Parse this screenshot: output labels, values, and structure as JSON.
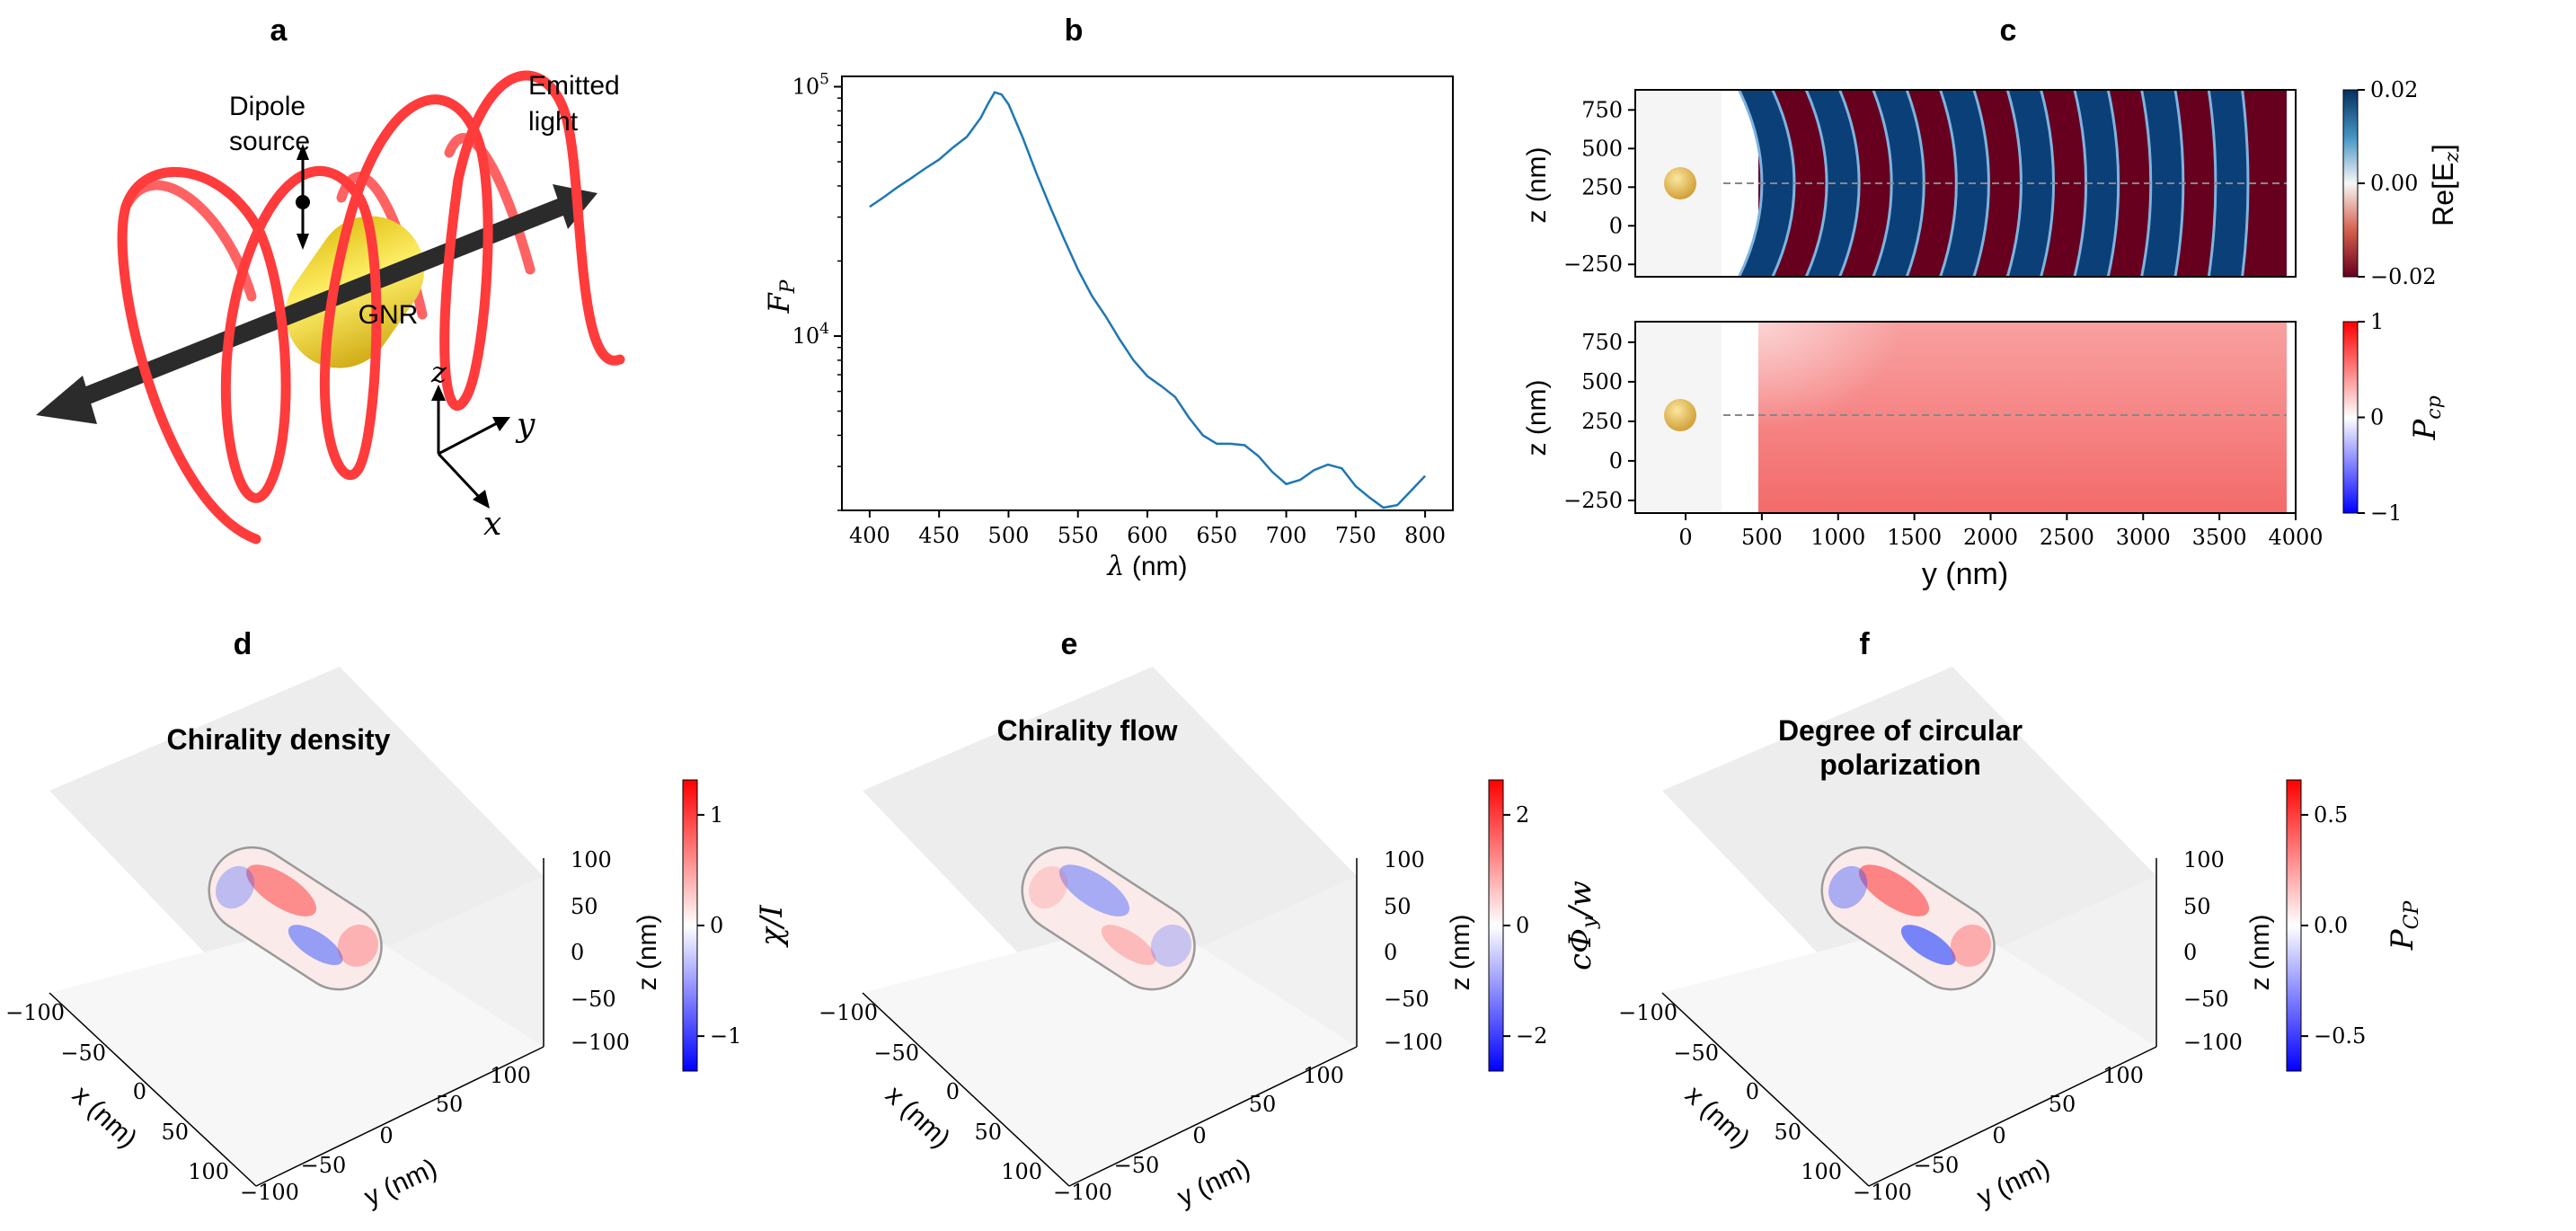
{
  "panel_letters": {
    "a": "a",
    "b": "b",
    "c": "c",
    "d": "d",
    "e": "e",
    "f": "f"
  },
  "panel_a": {
    "labels": {
      "dipole": "Dipole",
      "source": "source",
      "emitted": "Emitted",
      "light": "light",
      "gnr": "GNR",
      "x": "x",
      "y": "y",
      "z": "z"
    },
    "colors": {
      "helix": "#ff3b3b",
      "rod": "#e8c413",
      "arrow": "#2b2b2b"
    }
  },
  "chart_data": [
    {
      "id": "b",
      "type": "line",
      "xlabel_symbol": "λ",
      "xlabel_unit": "(nm)",
      "ylabel_symbol": "F",
      "ylabel_sub": "P",
      "xlim": [
        380,
        820
      ],
      "ylim": [
        2000,
        110000
      ],
      "yscale": "log",
      "xticks": [
        400,
        450,
        500,
        550,
        600,
        650,
        700,
        750,
        800
      ],
      "yticks": [
        {
          "value": 10000,
          "base": "10",
          "exp": "4"
        },
        {
          "value": 100000,
          "base": "10",
          "exp": "5"
        }
      ],
      "line_color": "#1f77b4",
      "series": [
        {
          "x": [
            400,
            410,
            420,
            430,
            440,
            450,
            460,
            470,
            480,
            485,
            490,
            495,
            500,
            510,
            520,
            530,
            540,
            550,
            560,
            570,
            580,
            590,
            600,
            610,
            620,
            630,
            640,
            650,
            660,
            670,
            680,
            690,
            700,
            710,
            720,
            730,
            740,
            750,
            760,
            770,
            780,
            790,
            800
          ],
          "y": [
            33000,
            36000,
            39500,
            43000,
            47000,
            51000,
            57000,
            63000,
            75000,
            85000,
            95000,
            93000,
            85000,
            63000,
            45000,
            33000,
            24500,
            18500,
            14500,
            12000,
            9700,
            8000,
            6900,
            6300,
            5700,
            4700,
            4000,
            3700,
            3700,
            3650,
            3300,
            2850,
            2550,
            2650,
            2900,
            3050,
            2950,
            2500,
            2250,
            2050,
            2100,
            2400,
            2750
          ]
        }
      ]
    },
    {
      "id": "c-top",
      "type": "heatmap",
      "ylabel": "z (nm)",
      "xlim": [
        -330,
        4000
      ],
      "ylim": [
        -330,
        880
      ],
      "yticks": [
        -250,
        0,
        250,
        500,
        750
      ],
      "colorbar": {
        "label": "Re[E",
        "label_sub": "z",
        "label_end": "]",
        "ticks": [
          "0.02",
          "0.00",
          "−0.02"
        ],
        "min": -0.02,
        "max": 0.02
      },
      "fringe_start_y": 500,
      "fringe_end_y": 3900,
      "fringe_count": 16,
      "particle": {
        "y": 0,
        "z": 280,
        "color": "#e2b84a"
      },
      "dashed_line_z": 280
    },
    {
      "id": "c-bottom",
      "type": "heatmap",
      "xlabel": "y (nm)",
      "ylabel": "z (nm)",
      "xlim": [
        -330,
        4000
      ],
      "ylim": [
        -330,
        880
      ],
      "xticks": [
        0,
        500,
        1000,
        1500,
        2000,
        2500,
        3000,
        3500,
        4000
      ],
      "yticks": [
        -250,
        0,
        250,
        500,
        750
      ],
      "colorbar": {
        "label": "P",
        "label_sub": "cp",
        "ticks": [
          "1",
          "0",
          "−1"
        ],
        "min": -1,
        "max": 1
      },
      "particle": {
        "y": 0,
        "z": 280,
        "color": "#e2b84a"
      },
      "dashed_line_z": 280
    },
    {
      "id": "d",
      "type": "3d-surface",
      "title": "Chirality density",
      "axis_ticks": [
        "−100",
        "−50",
        "0",
        "50",
        "100"
      ],
      "xlabel": "x (nm)",
      "ylabel": "y (nm)",
      "zlabel": "z (nm)",
      "colorbar": {
        "label": "χ/I",
        "ticks": [
          "1",
          "0",
          "−1"
        ]
      }
    },
    {
      "id": "e",
      "type": "3d-surface",
      "title": "Chirality flow",
      "axis_ticks": [
        "−100",
        "−50",
        "0",
        "50",
        "100"
      ],
      "xlabel": "x (nm)",
      "ylabel": "y (nm)",
      "zlabel": "z (nm)",
      "colorbar": {
        "label": "cΦ",
        "label_sub": "y",
        "label_end": "/w",
        "ticks": [
          "2",
          "0",
          "−2"
        ]
      }
    },
    {
      "id": "f",
      "type": "3d-surface",
      "title_line1": "Degree of circular",
      "title_line2": "polarization",
      "axis_ticks": [
        "−100",
        "−50",
        "0",
        "50",
        "100"
      ],
      "xlabel": "x (nm)",
      "ylabel": "y (nm)",
      "zlabel": "z (nm)",
      "colorbar": {
        "label": "P",
        "label_sub": "CP",
        "ticks": [
          "0.5",
          "0.0",
          "−0.5"
        ]
      }
    }
  ]
}
